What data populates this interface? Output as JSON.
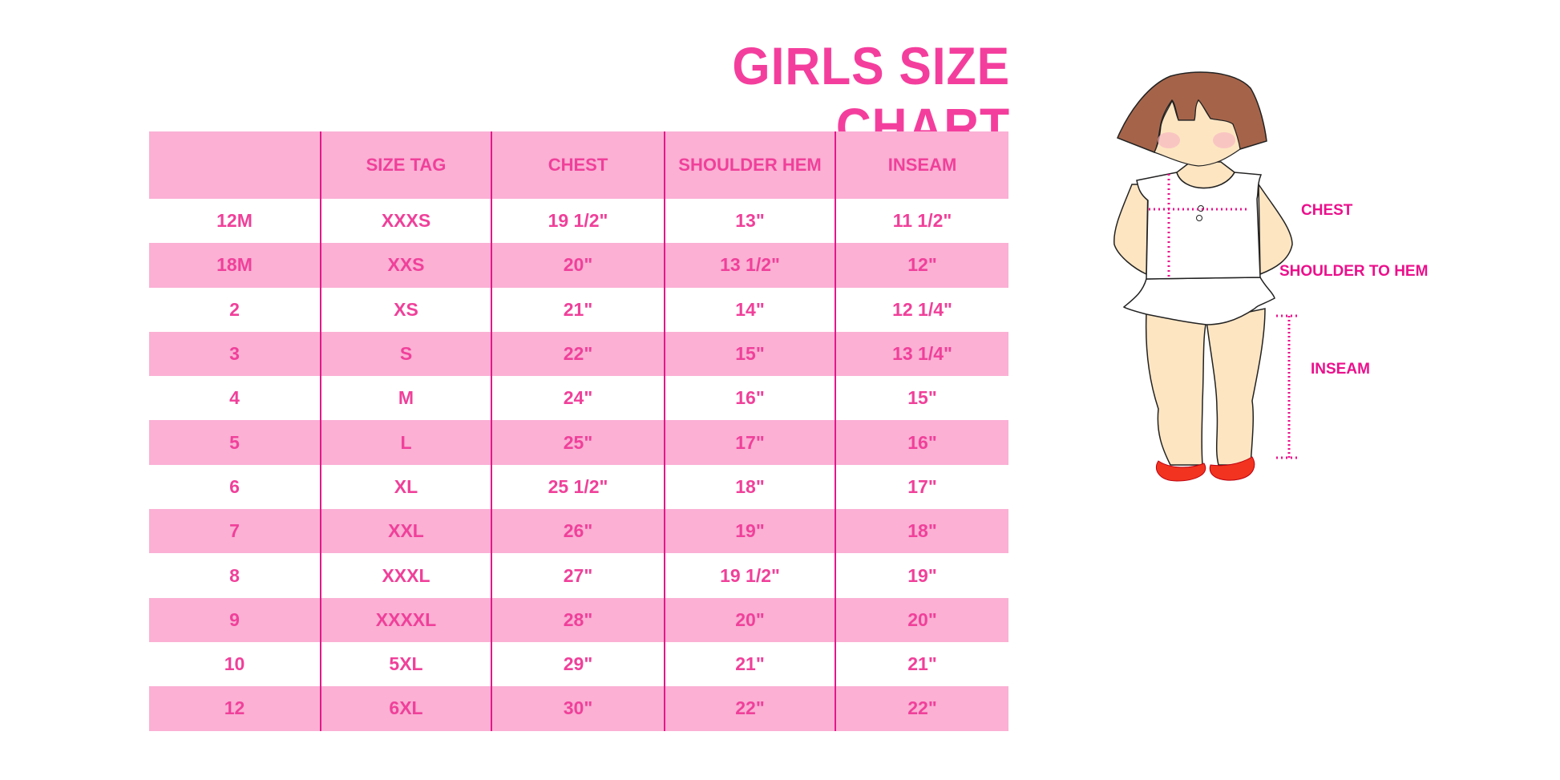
{
  "title": "GIRLS SIZE CHART",
  "colors": {
    "accent": "#f43e9d",
    "header_bg": "#fbb0d4",
    "divider": "#e4188a"
  },
  "table": {
    "headers": [
      "",
      "SIZE TAG",
      "CHEST",
      "SHOULDER HEM",
      "INSEAM"
    ],
    "rows": [
      [
        "12M",
        "XXXS",
        "19 1/2\"",
        "13\"",
        "11 1/2\""
      ],
      [
        "18M",
        "XXS",
        "20\"",
        "13 1/2\"",
        "12\""
      ],
      [
        "2",
        "XS",
        "21\"",
        "14\"",
        "12 1/4\""
      ],
      [
        "3",
        "S",
        "22\"",
        "15\"",
        "13 1/4\""
      ],
      [
        "4",
        "M",
        "24\"",
        "16\"",
        "15\""
      ],
      [
        "5",
        "L",
        "25\"",
        "17\"",
        "16\""
      ],
      [
        "6",
        "XL",
        "25 1/2\"",
        "18\"",
        "17\""
      ],
      [
        "7",
        "XXL",
        "26\"",
        "19\"",
        "18\""
      ],
      [
        "8",
        "XXXL",
        "27\"",
        "19 1/2\"",
        "19\""
      ],
      [
        "9",
        "XXXXL",
        "28\"",
        "20\"",
        "20\""
      ],
      [
        "10",
        "5XL",
        "29\"",
        "21\"",
        "21\""
      ],
      [
        "12",
        "6XL",
        "30\"",
        "22\"",
        "22\""
      ]
    ]
  },
  "figure": {
    "labels": {
      "chest": "CHEST",
      "shoulder": "SHOULDER TO HEM",
      "inseam": "INSEAM"
    }
  }
}
